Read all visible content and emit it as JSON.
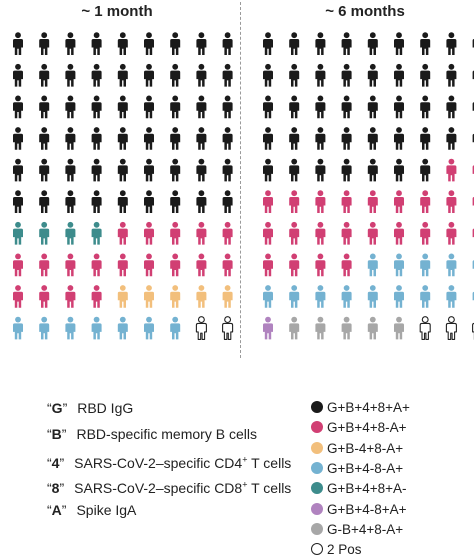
{
  "chart_data": {
    "type": "pictogram",
    "panels": [
      {
        "title": "~ 1 month",
        "counts": {
          "G+B+4+8+A+": 54,
          "G+B+4+8-A+": 18,
          "G+B-4+8-A+": 5,
          "G+B+4-8-A+": 7,
          "G+B+4+8+A-": 4,
          "G+B+4-8+A+": 0,
          "G-B+4+8-A+": 0,
          "2 Pos": 2
        },
        "order": [
          "G+B+4+8+A+",
          "G+B+4+8+A-",
          "G+B+4+8-A+",
          "G+B-4+8-A+",
          "G+B+4-8-A+",
          "2 Pos"
        ]
      },
      {
        "title": "~ 6 months",
        "counts": {
          "G+B+4+8+A+": 43,
          "G+B+4+8-A+": 24,
          "G+B-4+8-A+": 0,
          "G+B+4-8-A+": 14,
          "G+B+4+8+A-": 0,
          "G+B+4-8+A+": 1,
          "G-B+4+8-A+": 5,
          "2 Pos": 3
        },
        "order": [
          "G+B+4+8+A+",
          "G+B+4+8-A+",
          "G+B+4-8-A+",
          "G+B+4-8+A+",
          "G-B+4+8-A+",
          "2 Pos"
        ]
      }
    ],
    "key": [
      {
        "code": "G",
        "desc": "RBD IgG"
      },
      {
        "code": "B",
        "desc": "RBD-specific memory B cells"
      },
      {
        "code": "4",
        "desc": "SARS-CoV-2–specific CD4",
        "sup": "+",
        "tail": " T cells"
      },
      {
        "code": "8",
        "desc": "SARS-CoV-2–specific CD8",
        "sup": "+",
        "tail": " T cells"
      },
      {
        "code": "A",
        "desc": "Spike IgA"
      }
    ],
    "legend": [
      {
        "label": "G+B+4+8+A+",
        "color": "#1a1a1a"
      },
      {
        "label": "G+B+4+8-A+",
        "color": "#d13f73"
      },
      {
        "label": "G+B-4+8-A+",
        "color": "#f2bf7c"
      },
      {
        "label": "G+B+4-8-A+",
        "color": "#74b2d1"
      },
      {
        "label": "G+B+4+8+A-",
        "color": "#3d8c8c"
      },
      {
        "label": "G+B+4-8+A+",
        "color": "#b083bf"
      },
      {
        "label": "G-B+4+8-A+",
        "color": "#a7a7a7"
      },
      {
        "label": "2 Pos",
        "color": "#ffffff",
        "outline": "#222222"
      }
    ]
  }
}
